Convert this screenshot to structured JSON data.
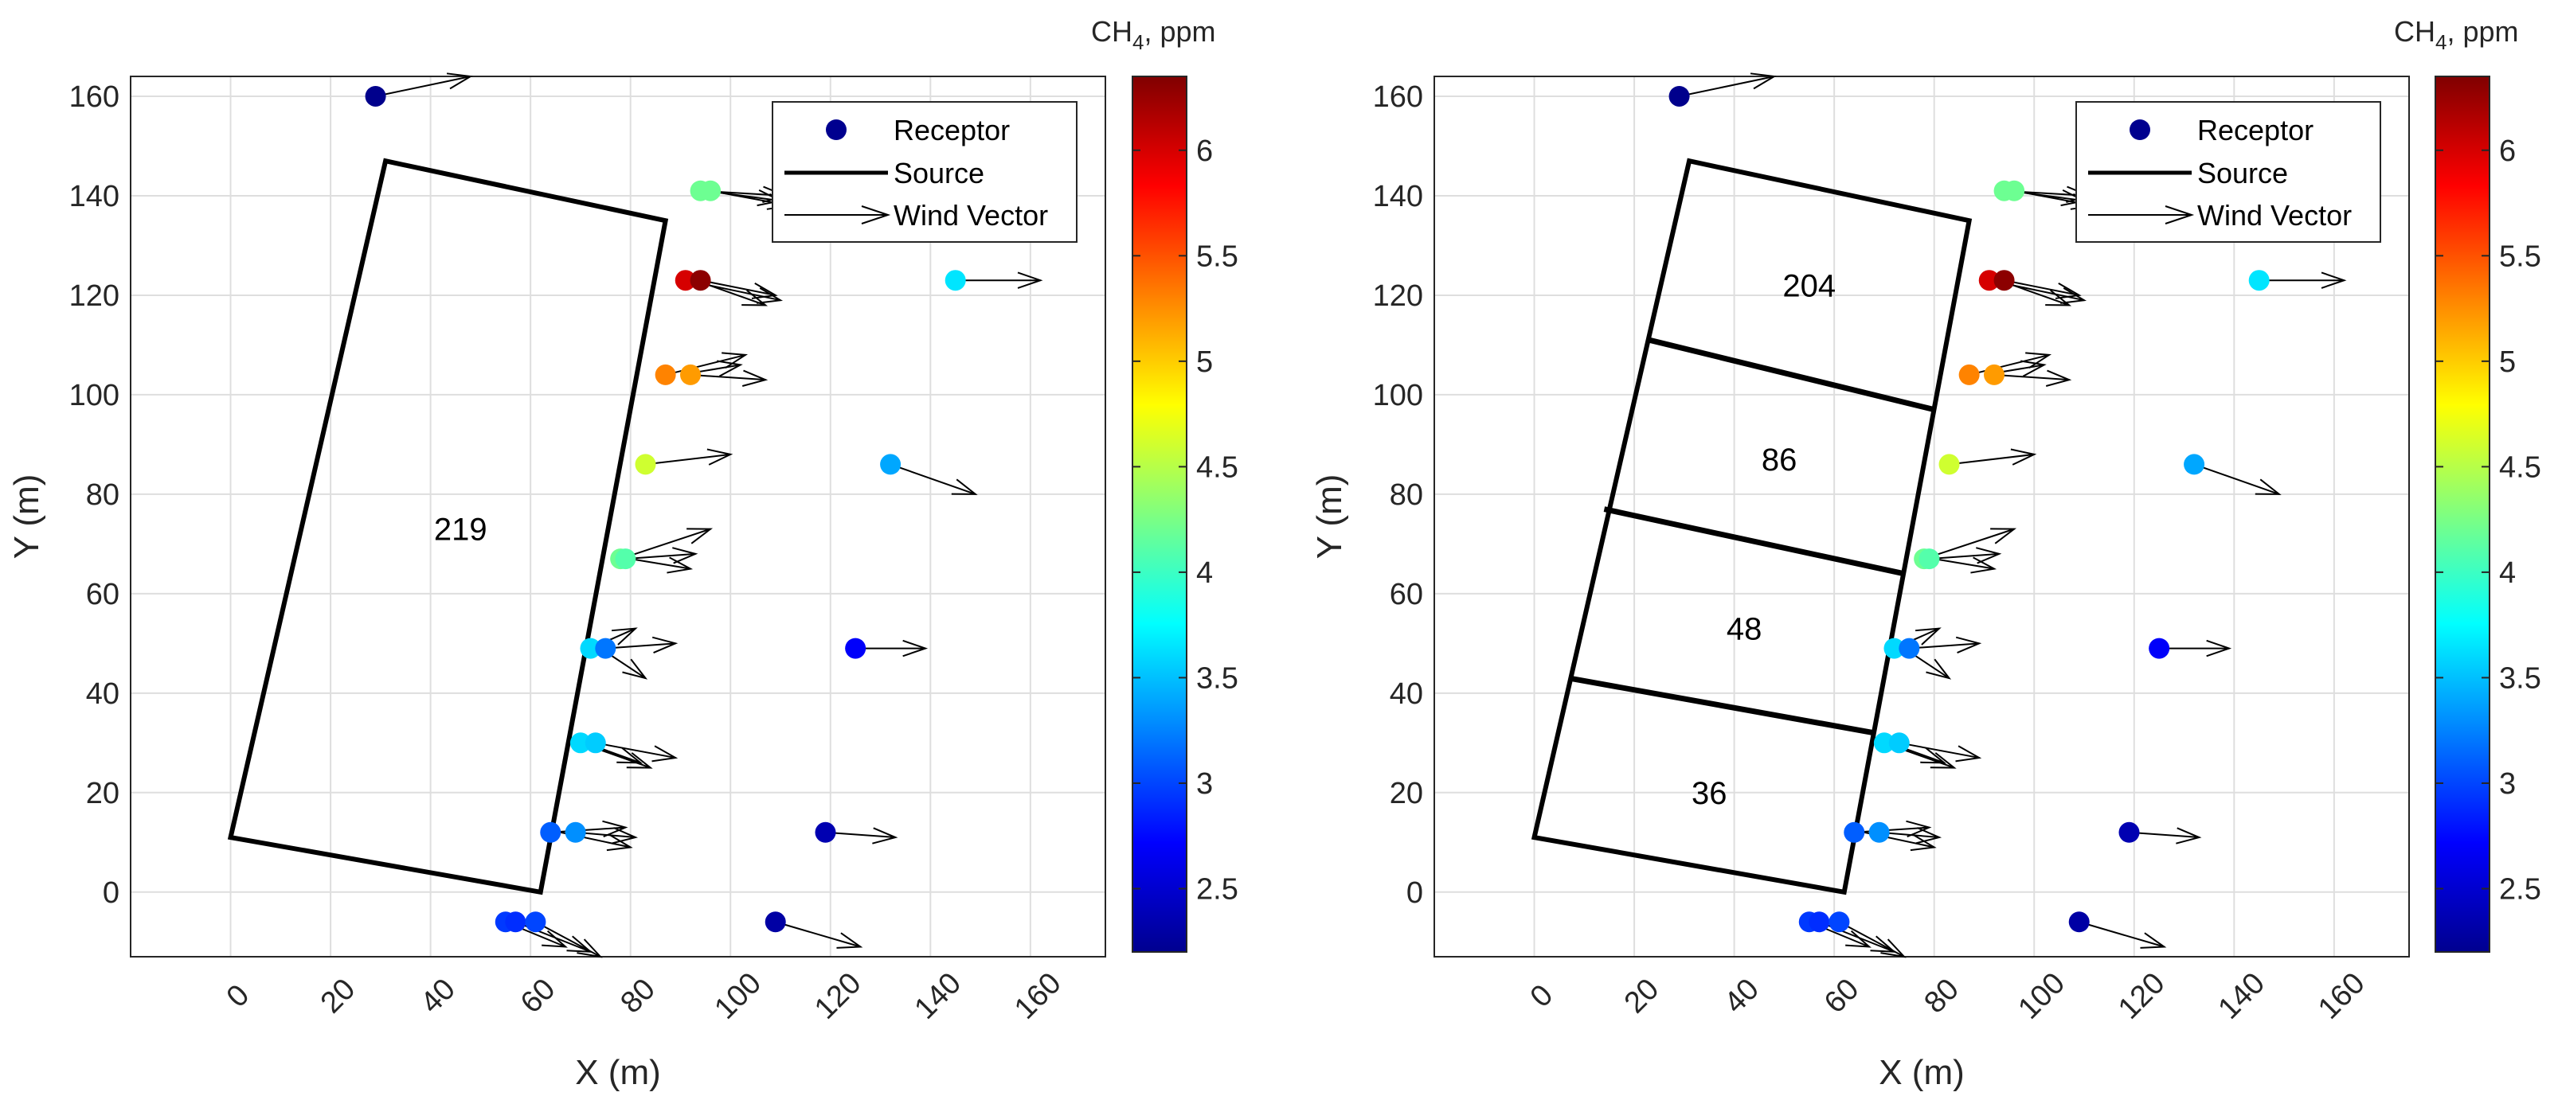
{
  "colors": {
    "grid": "#dedede",
    "axis": "#262626",
    "source": "#000000",
    "arrow": "#000000"
  },
  "chart_data": [
    {
      "type": "scatter",
      "xlabel": "X (m)",
      "ylabel": "Y (m)",
      "xlim": [
        -20,
        175
      ],
      "ylim": [
        -13,
        164
      ],
      "xticks": [
        0,
        20,
        40,
        60,
        80,
        100,
        120,
        140,
        160
      ],
      "yticks": [
        0,
        20,
        40,
        60,
        80,
        100,
        120,
        140,
        160
      ],
      "grid": true,
      "legend": {
        "placement": "top-right",
        "entries": [
          {
            "kind": "marker",
            "label": "Receptor"
          },
          {
            "kind": "line",
            "label": "Source"
          },
          {
            "kind": "arrow",
            "label": "Wind Vector"
          }
        ]
      },
      "colorbar": {
        "title_main": "CH",
        "title_sub": "4",
        "title_rest": ", ppm",
        "range": [
          2.2,
          6.35
        ],
        "ticks": [
          2.5,
          3,
          3.5,
          4,
          4.5,
          5,
          5.5,
          6
        ]
      },
      "sources": [
        {
          "polygon": [
            [
              0,
              11
            ],
            [
              31,
              147
            ],
            [
              87,
              135
            ],
            [
              62,
              0
            ]
          ],
          "label": "219",
          "label_pos": [
            46,
            73
          ]
        }
      ],
      "receptors": [
        {
          "x": 29,
          "y": 160,
          "c": 2.25
        },
        {
          "x": 94,
          "y": 141,
          "c": 4.2
        },
        {
          "x": 96,
          "y": 141,
          "c": 4.2
        },
        {
          "x": 91,
          "y": 123,
          "c": 6.0
        },
        {
          "x": 94,
          "y": 123,
          "c": 6.3
        },
        {
          "x": 145,
          "y": 123,
          "c": 3.65
        },
        {
          "x": 87,
          "y": 104,
          "c": 5.3
        },
        {
          "x": 92,
          "y": 104,
          "c": 5.2
        },
        {
          "x": 83,
          "y": 86,
          "c": 4.6
        },
        {
          "x": 132,
          "y": 86,
          "c": 3.4
        },
        {
          "x": 78,
          "y": 67,
          "c": 4.2
        },
        {
          "x": 79,
          "y": 67,
          "c": 4.1
        },
        {
          "x": 72,
          "y": 49,
          "c": 3.6
        },
        {
          "x": 75,
          "y": 49,
          "c": 3.2
        },
        {
          "x": 125,
          "y": 49,
          "c": 2.7
        },
        {
          "x": 70,
          "y": 30,
          "c": 3.6
        },
        {
          "x": 73,
          "y": 30,
          "c": 3.55
        },
        {
          "x": 64,
          "y": 12,
          "c": 3.1
        },
        {
          "x": 69,
          "y": 12,
          "c": 3.3
        },
        {
          "x": 119,
          "y": 12,
          "c": 2.4
        },
        {
          "x": 55,
          "y": -6,
          "c": 2.95
        },
        {
          "x": 57,
          "y": -6,
          "c": 2.9
        },
        {
          "x": 61,
          "y": -6,
          "c": 3.0
        },
        {
          "x": 109,
          "y": -6,
          "c": 2.35
        }
      ],
      "wind_vectors": [
        {
          "x": 29,
          "y": 160,
          "dx": 19,
          "dy": 4
        },
        {
          "x": 94,
          "y": 141,
          "dx": 17,
          "dy": -1
        },
        {
          "x": 96,
          "y": 141,
          "dx": 16,
          "dy": -3
        },
        {
          "x": 95,
          "y": 141,
          "dx": 15,
          "dy": -2
        },
        {
          "x": 91,
          "y": 123,
          "dx": 19,
          "dy": -4
        },
        {
          "x": 94,
          "y": 123,
          "dx": 15,
          "dy": -3
        },
        {
          "x": 93,
          "y": 123,
          "dx": 14,
          "dy": -5
        },
        {
          "x": 145,
          "y": 123,
          "dx": 17,
          "dy": 0
        },
        {
          "x": 87,
          "y": 104,
          "dx": 16,
          "dy": 4
        },
        {
          "x": 92,
          "y": 104,
          "dx": 15,
          "dy": -1
        },
        {
          "x": 90,
          "y": 104,
          "dx": 12,
          "dy": 2
        },
        {
          "x": 83,
          "y": 86,
          "dx": 17,
          "dy": 2
        },
        {
          "x": 132,
          "y": 86,
          "dx": 17,
          "dy": -6
        },
        {
          "x": 78,
          "y": 67,
          "dx": 18,
          "dy": 6
        },
        {
          "x": 79,
          "y": 67,
          "dx": 14,
          "dy": 1
        },
        {
          "x": 80,
          "y": 67,
          "dx": 12,
          "dy": -2
        },
        {
          "x": 72,
          "y": 49,
          "dx": 9,
          "dy": 4
        },
        {
          "x": 75,
          "y": 49,
          "dx": 14,
          "dy": 1
        },
        {
          "x": 74,
          "y": 49,
          "dx": 9,
          "dy": -6
        },
        {
          "x": 125,
          "y": 49,
          "dx": 14,
          "dy": 0
        },
        {
          "x": 70,
          "y": 30,
          "dx": 14,
          "dy": -5
        },
        {
          "x": 73,
          "y": 30,
          "dx": 16,
          "dy": -3
        },
        {
          "x": 71,
          "y": 30,
          "dx": 11,
          "dy": -4
        },
        {
          "x": 64,
          "y": 12,
          "dx": 15,
          "dy": 1
        },
        {
          "x": 69,
          "y": 12,
          "dx": 12,
          "dy": -1
        },
        {
          "x": 66,
          "y": 12,
          "dx": 14,
          "dy": -3
        },
        {
          "x": 119,
          "y": 12,
          "dx": 14,
          "dy": -1
        },
        {
          "x": 55,
          "y": -6,
          "dx": 12,
          "dy": -5
        },
        {
          "x": 57,
          "y": -6,
          "dx": 15,
          "dy": -6
        },
        {
          "x": 61,
          "y": -6,
          "dx": 13,
          "dy": -7
        },
        {
          "x": 109,
          "y": -6,
          "dx": 17,
          "dy": -5
        }
      ]
    },
    {
      "type": "scatter",
      "xlabel": "X (m)",
      "ylabel": "Y (m)",
      "xlim": [
        -20,
        175
      ],
      "ylim": [
        -13,
        164
      ],
      "xticks": [
        0,
        20,
        40,
        60,
        80,
        100,
        120,
        140,
        160
      ],
      "yticks": [
        0,
        20,
        40,
        60,
        80,
        100,
        120,
        140,
        160
      ],
      "grid": true,
      "legend": {
        "placement": "top-right",
        "entries": [
          {
            "kind": "marker",
            "label": "Receptor"
          },
          {
            "kind": "line",
            "label": "Source"
          },
          {
            "kind": "arrow",
            "label": "Wind Vector"
          }
        ]
      },
      "colorbar": {
        "title_main": "CH",
        "title_sub": "4",
        "title_rest": ", ppm",
        "range": [
          2.2,
          6.35
        ],
        "ticks": [
          2.5,
          3,
          3.5,
          4,
          4.5,
          5,
          5.5,
          6
        ]
      },
      "sources": [
        {
          "polygon": [
            [
              0,
              11
            ],
            [
              31,
              147
            ],
            [
              87,
              135
            ],
            [
              62,
              0
            ]
          ],
          "label": "",
          "label_pos": [
            0,
            0
          ]
        },
        {
          "polygon": [
            [
              23,
              111
            ],
            [
              80,
              97
            ]
          ],
          "label": "",
          "label_pos": [
            0,
            0
          ]
        },
        {
          "polygon": [
            [
              14,
              77
            ],
            [
              74,
              64
            ]
          ],
          "label": "",
          "label_pos": [
            0,
            0
          ]
        },
        {
          "polygon": [
            [
              7,
              43
            ],
            [
              68,
              32
            ]
          ],
          "label": "",
          "label_pos": [
            0,
            0
          ]
        }
      ],
      "area_labels": [
        {
          "text": "204",
          "pos": [
            55,
            122
          ]
        },
        {
          "text": "86",
          "pos": [
            49,
            87
          ]
        },
        {
          "text": "48",
          "pos": [
            42,
            53
          ]
        },
        {
          "text": "36",
          "pos": [
            35,
            20
          ]
        }
      ],
      "receptors": "same-as-left",
      "wind_vectors": "same-as-left"
    }
  ]
}
